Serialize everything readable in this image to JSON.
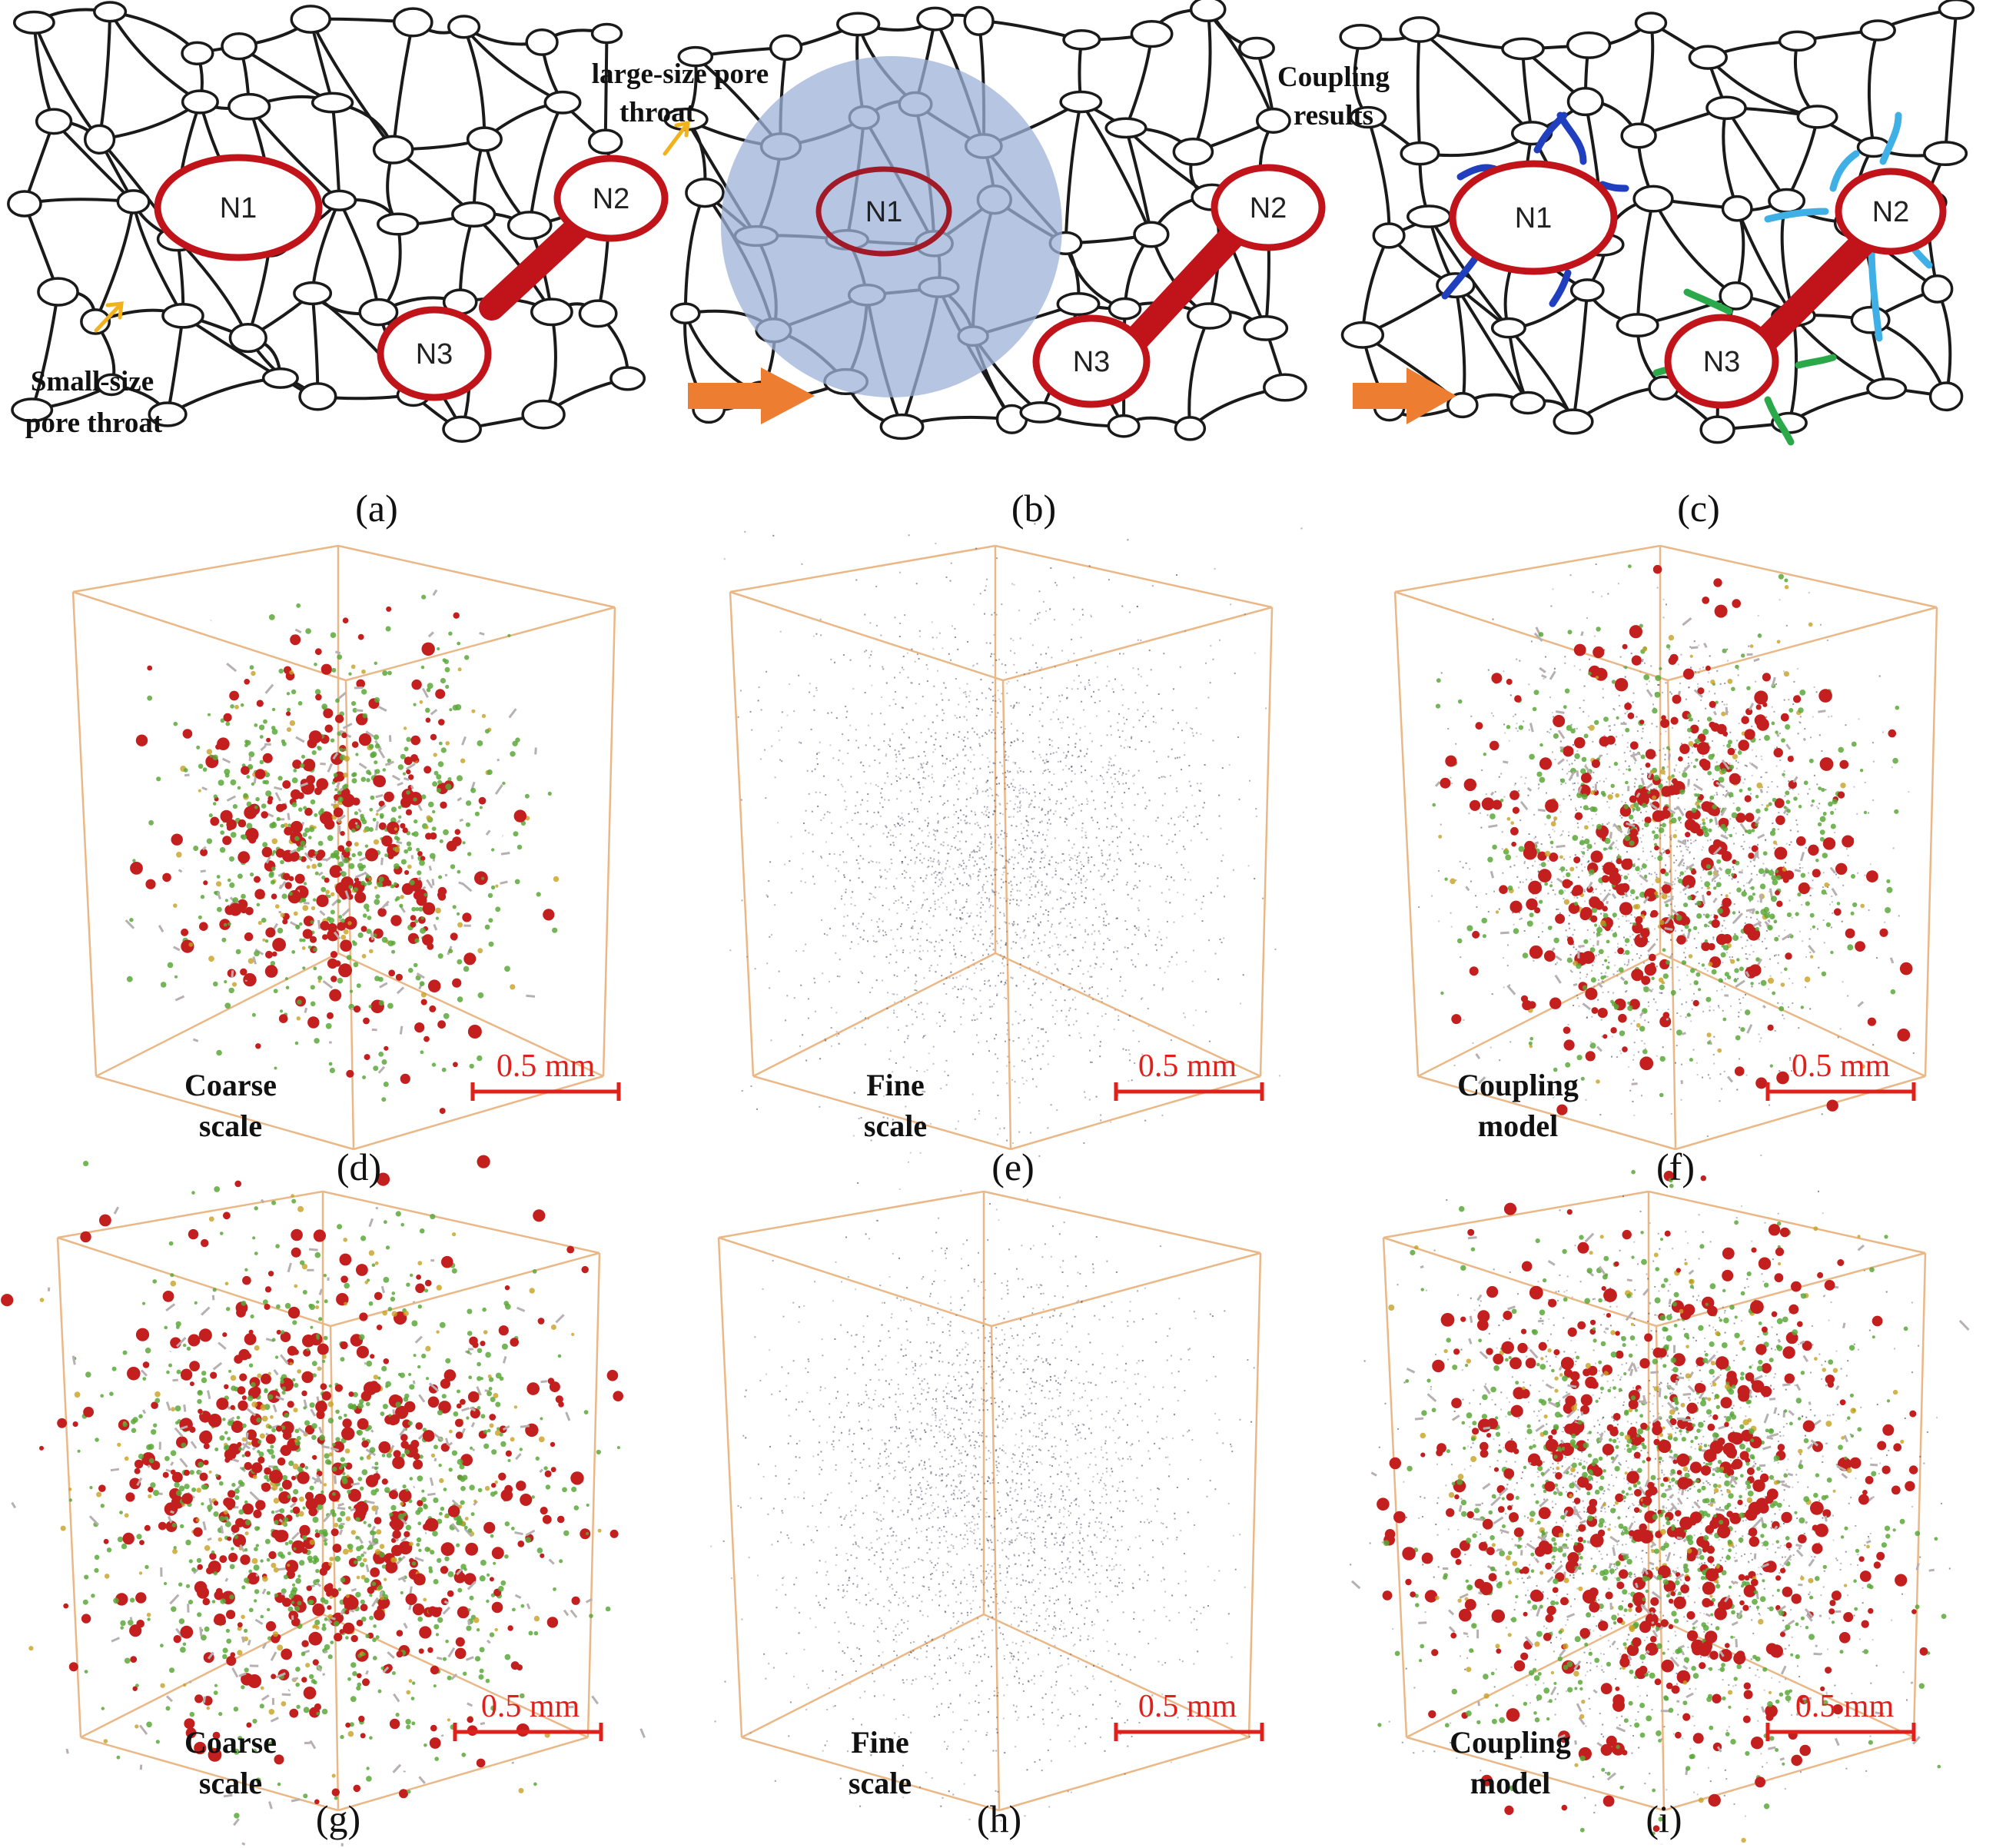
{
  "figure": {
    "panel_labels": [
      "(a)",
      "(b)",
      "(c)",
      "(d)",
      "(e)",
      "(f)",
      "(g)",
      "(h)",
      "(i)"
    ]
  },
  "schematic": {
    "nodes": [
      "N1",
      "N2",
      "N3"
    ],
    "annotations": {
      "large_pore_line1": "large-size pore",
      "large_pore_line2": "throat",
      "small_pore_line1": "Small-size",
      "small_pore_line2": "pore throat",
      "coupling_line1": "Coupling",
      "coupling_line2": "results"
    }
  },
  "renderings": {
    "scale_bar": "0.5 mm",
    "coarse_line1": "Coarse",
    "coarse_line2": "scale",
    "fine_line1": "Fine",
    "fine_line2": "scale",
    "coupling_line1": "Coupling",
    "coupling_line2": "model"
  },
  "colors": {
    "large_pore": "#c0141a",
    "network": "#1a1a1a",
    "arrow": "#ed7d31",
    "highlight": "#9db3d8",
    "n1_links": "#1f3fbf",
    "n2_links": "#3fb0e6",
    "n3_links": "#2aa84a",
    "cube_edge": "#e8b07a",
    "scale_bar": "#e0201a"
  }
}
